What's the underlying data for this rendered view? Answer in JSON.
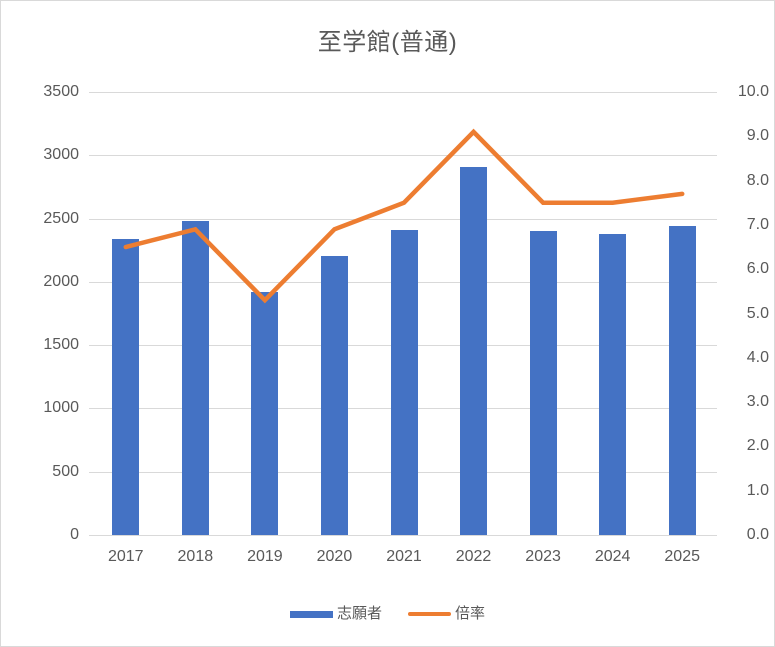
{
  "title": "至学館(普通)",
  "colors": {
    "bar": "#4472C4",
    "line": "#ED7D31",
    "grid": "#D9D9D9",
    "text": "#595959",
    "border": "#D9D9D9",
    "background": "#FFFFFF"
  },
  "legend": {
    "items": [
      {
        "label": "志願者",
        "type": "bar"
      },
      {
        "label": "倍率",
        "type": "line"
      }
    ],
    "position": "bottom"
  },
  "chart_data": {
    "type": "combo-bar-line",
    "title": "至学館(普通)",
    "categories": [
      "2017",
      "2018",
      "2019",
      "2020",
      "2021",
      "2022",
      "2023",
      "2024",
      "2025"
    ],
    "series": [
      {
        "name": "志願者",
        "type": "bar",
        "axis": "left",
        "color": "#4472C4",
        "values": [
          2340,
          2480,
          1920,
          2205,
          2410,
          2910,
          2405,
          2375,
          2445
        ]
      },
      {
        "name": "倍率",
        "type": "line",
        "axis": "right",
        "color": "#ED7D31",
        "values": [
          6.5,
          6.9,
          5.3,
          6.9,
          7.5,
          9.1,
          7.5,
          7.5,
          7.7
        ]
      }
    ],
    "left_axis": {
      "min": 0,
      "max": 3500,
      "step": 500,
      "tick_labels": [
        "0",
        "500",
        "1000",
        "1500",
        "2000",
        "2500",
        "3000",
        "3500"
      ]
    },
    "right_axis": {
      "min": 0.0,
      "max": 10.0,
      "step": 1.0,
      "tick_labels": [
        "0.0",
        "1.0",
        "2.0",
        "3.0",
        "4.0",
        "5.0",
        "6.0",
        "7.0",
        "8.0",
        "9.0",
        "10.0"
      ]
    },
    "grid": "horizontal",
    "legend_position": "bottom"
  }
}
